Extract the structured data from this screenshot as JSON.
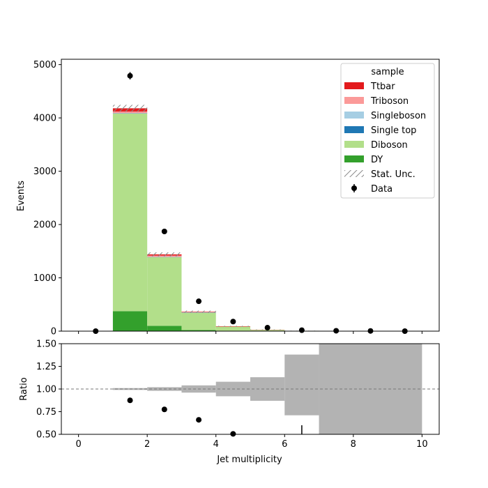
{
  "chart_data": {
    "type": "bar",
    "stacked": true,
    "bin_edges": [
      0,
      1,
      2,
      3,
      4,
      5,
      6,
      7,
      8,
      9,
      10
    ],
    "xlabel": "Jet multiplicity",
    "ylabel": "Events",
    "ylim": [
      0,
      5100
    ],
    "xlim": [
      -0.5,
      10.5
    ],
    "yticks": [
      0,
      1000,
      2000,
      3000,
      4000,
      5000
    ],
    "xticks": [
      0,
      2,
      4,
      6,
      8,
      10
    ],
    "series": [
      {
        "name": "DY",
        "color": "#33a02c",
        "values": [
          0,
          375,
          100,
          20,
          6,
          2,
          1,
          0,
          0,
          0
        ]
      },
      {
        "name": "Diboson",
        "color": "#b2df8a",
        "values": [
          0,
          3710,
          1290,
          330,
          80,
          25,
          6,
          0,
          0,
          0
        ]
      },
      {
        "name": "Single top",
        "color": "#1f78b4",
        "values": [
          0,
          3,
          2,
          1,
          0,
          0,
          0,
          0,
          0,
          0
        ]
      },
      {
        "name": "Singleboson",
        "color": "#a6cee3",
        "values": [
          0,
          2,
          1,
          1,
          0,
          0,
          0,
          0,
          0,
          0
        ]
      },
      {
        "name": "Triboson",
        "color": "#fb9a99",
        "values": [
          0,
          30,
          25,
          10,
          4,
          1,
          0,
          0,
          0,
          0
        ]
      },
      {
        "name": "Ttbar",
        "color": "#e31a1c",
        "values": [
          0,
          60,
          22,
          5,
          1,
          0,
          0,
          0,
          0,
          0
        ]
      }
    ],
    "stat_unc": {
      "name": "Stat. Unc.",
      "values": [
        0,
        65,
        38,
        19,
        9,
        5,
        2,
        0,
        0,
        0
      ]
    },
    "data": {
      "name": "Data",
      "x": [
        0.5,
        1.5,
        2.5,
        3.5,
        4.5,
        5.5,
        6.5,
        7.5,
        8.5,
        9.5
      ],
      "y": [
        0,
        4790,
        1870,
        560,
        180,
        65,
        18,
        7,
        4,
        0
      ],
      "yerr": [
        0,
        69,
        43,
        24,
        13,
        8,
        4,
        3,
        2,
        0
      ]
    },
    "legend": {
      "title": "sample",
      "placement": "top-right"
    },
    "ratio": {
      "ylabel": "Ratio",
      "ylim": [
        0.5,
        1.5
      ],
      "yticks": [
        "0.50",
        "0.75",
        "1.00",
        "1.25",
        "1.50"
      ],
      "reference": 1.0,
      "unc_band": [
        [
          1,
          2,
          0.99,
          1.01
        ],
        [
          2,
          3,
          0.98,
          1.02
        ],
        [
          3,
          4,
          0.96,
          1.04
        ],
        [
          4,
          5,
          0.92,
          1.08
        ],
        [
          5,
          6,
          0.87,
          1.13
        ],
        [
          6,
          7,
          0.71,
          1.38
        ],
        [
          7,
          10,
          0.5,
          1.5
        ]
      ],
      "points": [
        {
          "x": 1.5,
          "y": 0.875,
          "err": 0.013
        },
        {
          "x": 2.5,
          "y": 0.775,
          "err": 0.016
        },
        {
          "x": 3.5,
          "y": 0.66,
          "err": 0.015
        },
        {
          "x": 4.5,
          "y": 0.505,
          "err": 0.01
        }
      ],
      "error_lines": [
        {
          "x": 6.5,
          "y_low": 0.5,
          "y_high": 0.6
        }
      ]
    }
  }
}
